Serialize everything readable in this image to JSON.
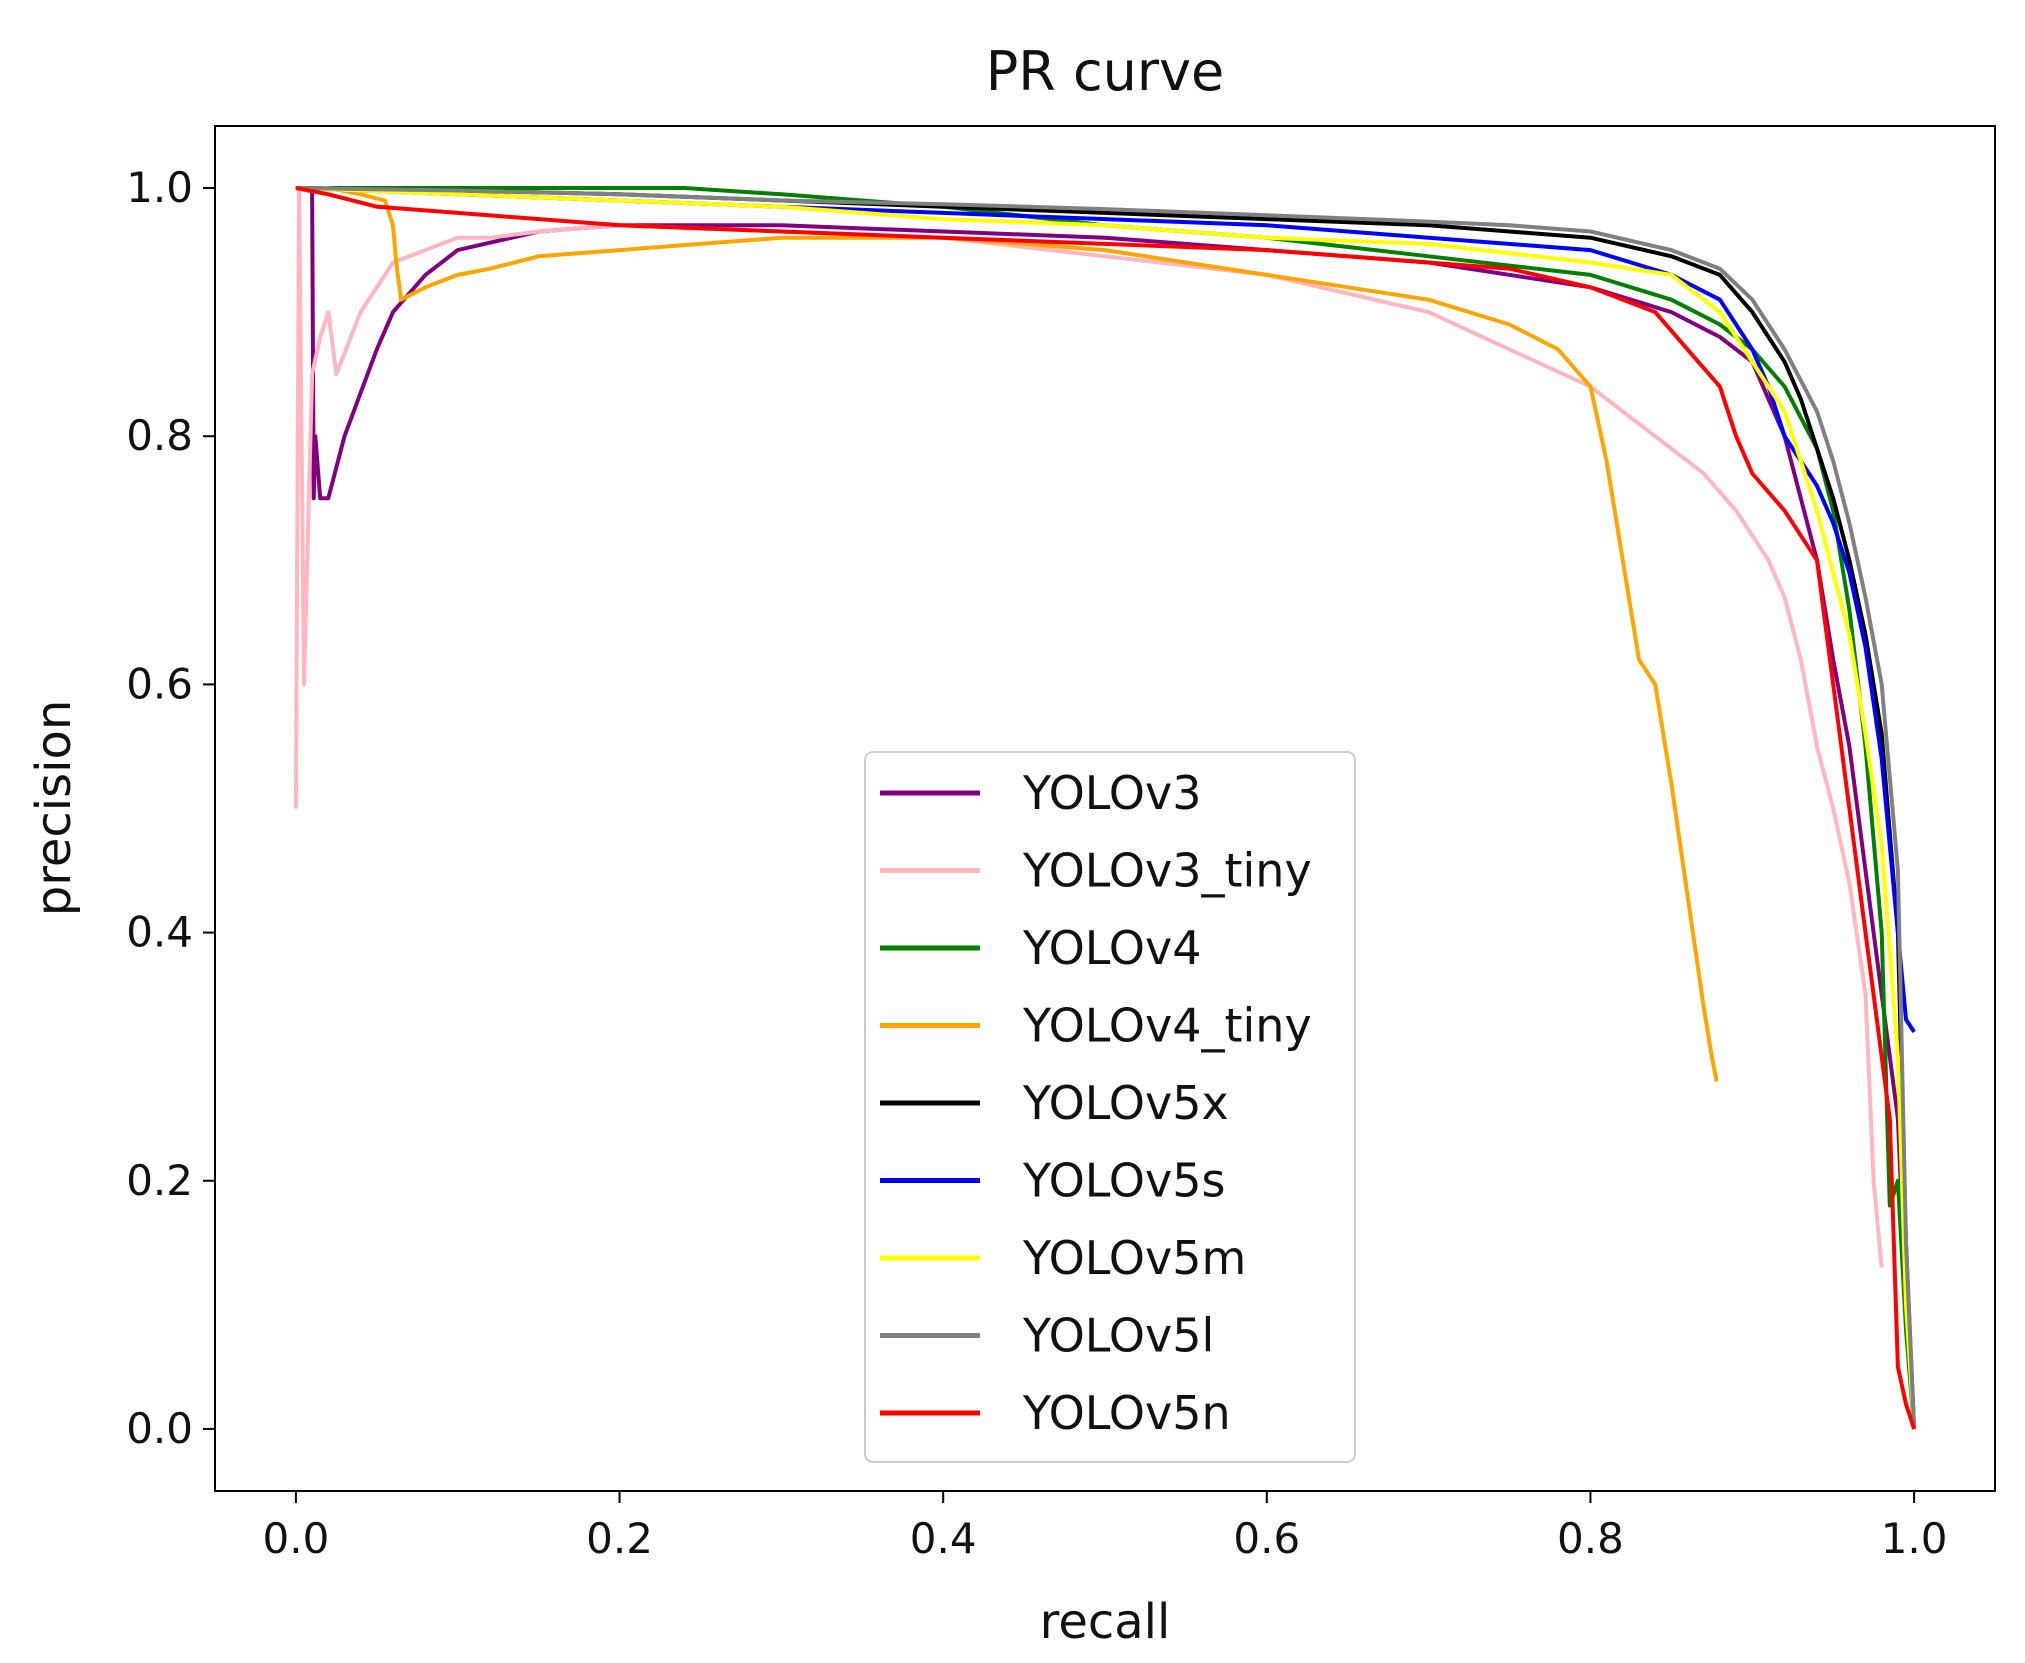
{
  "chart_data": {
    "type": "line",
    "title": "PR curve",
    "xlabel": "recall",
    "ylabel": "precision",
    "xlim": [
      -0.05,
      1.05
    ],
    "ylim": [
      -0.05,
      1.05
    ],
    "xticks": [
      0.0,
      0.2,
      0.4,
      0.6,
      0.8,
      1.0
    ],
    "yticks": [
      0.0,
      0.2,
      0.4,
      0.6,
      0.8,
      1.0
    ],
    "xtick_labels": [
      "0.0",
      "0.2",
      "0.4",
      "0.6",
      "0.8",
      "1.0"
    ],
    "ytick_labels": [
      "0.0",
      "0.2",
      "0.4",
      "0.6",
      "0.8",
      "1.0"
    ],
    "grid": false,
    "legend_position": "lower-center",
    "series": [
      {
        "name": "YOLOv3",
        "color": "#800080",
        "x": [
          0,
          0.01,
          0.011,
          0.012,
          0.015,
          0.02,
          0.03,
          0.05,
          0.06,
          0.08,
          0.1,
          0.15,
          0.2,
          0.3,
          0.4,
          0.5,
          0.6,
          0.7,
          0.8,
          0.85,
          0.88,
          0.9,
          0.92,
          0.94,
          0.95,
          0.96,
          0.97,
          0.98,
          0.985,
          0.99,
          0.995,
          1.0
        ],
        "y": [
          1.0,
          1.0,
          0.75,
          0.8,
          0.75,
          0.75,
          0.8,
          0.87,
          0.9,
          0.93,
          0.95,
          0.965,
          0.97,
          0.97,
          0.965,
          0.96,
          0.95,
          0.94,
          0.92,
          0.9,
          0.88,
          0.86,
          0.8,
          0.7,
          0.62,
          0.55,
          0.45,
          0.35,
          0.3,
          0.25,
          0.1,
          0.0
        ]
      },
      {
        "name": "YOLOv3_tiny",
        "color": "#ffb6c1",
        "x": [
          0,
          0.002,
          0.005,
          0.008,
          0.01,
          0.015,
          0.02,
          0.025,
          0.04,
          0.06,
          0.08,
          0.1,
          0.12,
          0.15,
          0.2,
          0.3,
          0.4,
          0.5,
          0.6,
          0.7,
          0.75,
          0.8,
          0.82,
          0.85,
          0.87,
          0.89,
          0.91,
          0.92,
          0.93,
          0.94,
          0.95,
          0.96,
          0.97,
          0.975,
          0.98
        ],
        "y": [
          0.5,
          1.0,
          0.6,
          0.75,
          0.85,
          0.88,
          0.9,
          0.85,
          0.9,
          0.94,
          0.95,
          0.96,
          0.96,
          0.965,
          0.97,
          0.965,
          0.96,
          0.945,
          0.93,
          0.9,
          0.87,
          0.84,
          0.82,
          0.79,
          0.77,
          0.74,
          0.7,
          0.67,
          0.62,
          0.55,
          0.5,
          0.44,
          0.35,
          0.2,
          0.13
        ]
      },
      {
        "name": "YOLOv4",
        "color": "#008000",
        "x": [
          0,
          0.05,
          0.1,
          0.2,
          0.24,
          0.3,
          0.4,
          0.5,
          0.6,
          0.7,
          0.8,
          0.85,
          0.88,
          0.9,
          0.92,
          0.94,
          0.95,
          0.96,
          0.97,
          0.98,
          0.985,
          0.99,
          0.995,
          1.0
        ],
        "y": [
          1.0,
          1.0,
          1.0,
          1.0,
          1.0,
          0.995,
          0.985,
          0.97,
          0.96,
          0.945,
          0.93,
          0.91,
          0.89,
          0.87,
          0.84,
          0.79,
          0.74,
          0.66,
          0.55,
          0.4,
          0.18,
          0.2,
          0.08,
          0.0
        ]
      },
      {
        "name": "YOLOv4_tiny",
        "color": "#ffa500",
        "x": [
          0,
          0.005,
          0.01,
          0.02,
          0.04,
          0.055,
          0.06,
          0.062,
          0.065,
          0.08,
          0.1,
          0.12,
          0.15,
          0.2,
          0.25,
          0.3,
          0.35,
          0.4,
          0.45,
          0.5,
          0.55,
          0.6,
          0.65,
          0.7,
          0.75,
          0.78,
          0.8,
          0.81,
          0.82,
          0.83,
          0.84,
          0.85,
          0.86,
          0.87,
          0.875,
          0.878
        ],
        "y": [
          1.0,
          1.0,
          1.0,
          1.0,
          0.995,
          0.99,
          0.97,
          0.94,
          0.91,
          0.92,
          0.93,
          0.935,
          0.945,
          0.95,
          0.955,
          0.96,
          0.96,
          0.96,
          0.955,
          0.95,
          0.94,
          0.93,
          0.92,
          0.91,
          0.89,
          0.87,
          0.84,
          0.78,
          0.7,
          0.62,
          0.6,
          0.52,
          0.43,
          0.34,
          0.3,
          0.28
        ]
      },
      {
        "name": "YOLOv5x",
        "color": "#000000",
        "x": [
          0,
          0.1,
          0.2,
          0.3,
          0.4,
          0.5,
          0.6,
          0.7,
          0.75,
          0.8,
          0.85,
          0.88,
          0.9,
          0.92,
          0.93,
          0.94,
          0.95,
          0.96,
          0.97,
          0.98,
          0.99,
          0.995,
          1.0
        ],
        "y": [
          1.0,
          0.998,
          0.995,
          0.99,
          0.985,
          0.98,
          0.975,
          0.97,
          0.965,
          0.96,
          0.945,
          0.93,
          0.9,
          0.86,
          0.83,
          0.79,
          0.75,
          0.7,
          0.64,
          0.56,
          0.4,
          0.15,
          0.0
        ]
      },
      {
        "name": "YOLOv5s",
        "color": "#0000ff",
        "x": [
          0,
          0.1,
          0.2,
          0.3,
          0.4,
          0.5,
          0.6,
          0.7,
          0.8,
          0.85,
          0.88,
          0.9,
          0.91,
          0.92,
          0.93,
          0.94,
          0.95,
          0.96,
          0.97,
          0.98,
          0.99,
          0.995,
          1.0
        ],
        "y": [
          1.0,
          0.995,
          0.99,
          0.985,
          0.98,
          0.975,
          0.97,
          0.96,
          0.95,
          0.93,
          0.91,
          0.87,
          0.84,
          0.8,
          0.78,
          0.76,
          0.73,
          0.69,
          0.63,
          0.54,
          0.4,
          0.33,
          0.32
        ]
      },
      {
        "name": "YOLOv5m",
        "color": "#ffff00",
        "x": [
          0,
          0.1,
          0.2,
          0.3,
          0.4,
          0.5,
          0.6,
          0.7,
          0.8,
          0.85,
          0.88,
          0.9,
          0.92,
          0.93,
          0.94,
          0.95,
          0.96,
          0.97,
          0.98,
          0.99,
          0.995,
          1.0
        ],
        "y": [
          1.0,
          0.995,
          0.99,
          0.985,
          0.975,
          0.97,
          0.96,
          0.955,
          0.94,
          0.93,
          0.9,
          0.86,
          0.82,
          0.78,
          0.74,
          0.69,
          0.64,
          0.56,
          0.47,
          0.3,
          0.1,
          0.0
        ]
      },
      {
        "name": "YOLOv5l",
        "color": "#808080",
        "x": [
          0,
          0.1,
          0.2,
          0.3,
          0.4,
          0.5,
          0.6,
          0.7,
          0.75,
          0.8,
          0.85,
          0.88,
          0.9,
          0.92,
          0.94,
          0.95,
          0.96,
          0.97,
          0.98,
          0.99,
          0.995,
          1.0
        ],
        "y": [
          1.0,
          0.998,
          0.995,
          0.99,
          0.987,
          0.983,
          0.978,
          0.973,
          0.97,
          0.965,
          0.95,
          0.935,
          0.91,
          0.87,
          0.82,
          0.78,
          0.73,
          0.67,
          0.6,
          0.45,
          0.15,
          0.0
        ]
      },
      {
        "name": "YOLOv5n",
        "color": "#ff0000",
        "x": [
          0,
          0.02,
          0.05,
          0.1,
          0.2,
          0.3,
          0.4,
          0.5,
          0.6,
          0.7,
          0.75,
          0.8,
          0.84,
          0.86,
          0.88,
          0.89,
          0.9,
          0.92,
          0.94,
          0.95,
          0.96,
          0.97,
          0.98,
          0.985,
          0.99,
          0.995,
          1.0
        ],
        "y": [
          1.0,
          0.995,
          0.985,
          0.98,
          0.97,
          0.965,
          0.96,
          0.955,
          0.95,
          0.94,
          0.935,
          0.92,
          0.9,
          0.87,
          0.84,
          0.8,
          0.77,
          0.74,
          0.7,
          0.6,
          0.5,
          0.4,
          0.3,
          0.25,
          0.05,
          0.02,
          0.0
        ]
      }
    ]
  }
}
